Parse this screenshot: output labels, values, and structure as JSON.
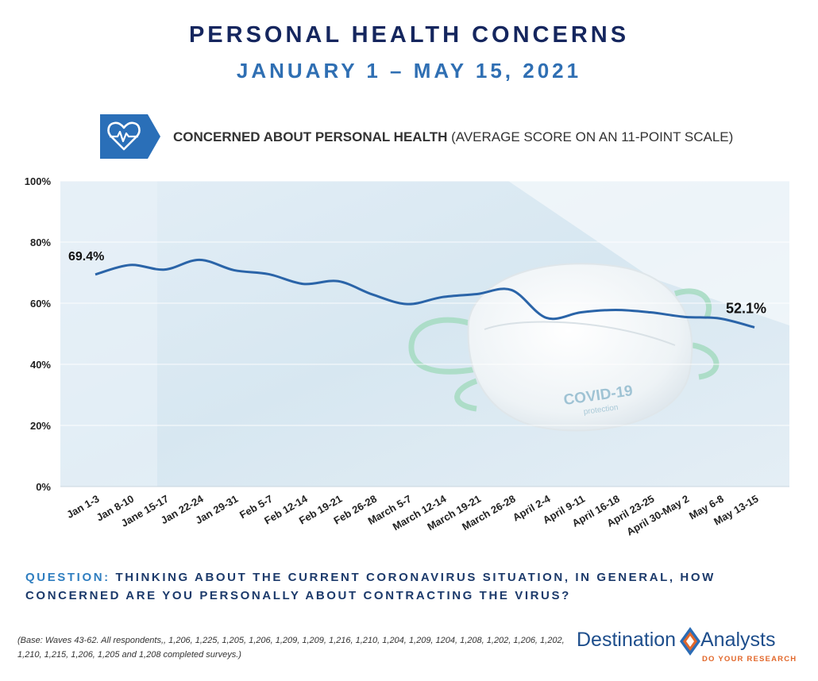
{
  "header": {
    "title": "PERSONAL HEALTH CONCERNS",
    "subtitle": "JANUARY 1 – MAY 15, 2021"
  },
  "metric": {
    "icon": "heart-pulse-icon",
    "label_bold": "CONCERNED ABOUT PERSONAL HEALTH",
    "label_rest": " (AVERAGE SCORE ON AN 11-POINT SCALE)"
  },
  "chart_data": {
    "type": "line",
    "categories": [
      "Jan 1-3",
      "Jan 8-10",
      "Jane 15-17",
      "Jan 22-24",
      "Jan 29-31",
      "Feb 5-7",
      "Feb 12-14",
      "Feb 19-21",
      "Feb 26-28",
      "March 5-7",
      "March 12-14",
      "March 19-21",
      "March 26-28",
      "April 2-4",
      "April 9-11",
      "April 16-18",
      "April 23-25",
      "April 30-May 2",
      "May 6-8",
      "May 13-15"
    ],
    "series": [
      {
        "values": [
          69.4,
          72.5,
          71.0,
          74.2,
          70.8,
          69.5,
          66.3,
          67.2,
          62.8,
          59.7,
          62.0,
          63.0,
          64.3,
          55.2,
          57.0,
          57.8,
          57.0,
          55.5,
          55.0,
          52.1
        ],
        "color": "#2a64a8"
      }
    ],
    "ylim": [
      0,
      100
    ],
    "yticks": [
      "0%",
      "20%",
      "40%",
      "60%",
      "80%",
      "100%"
    ],
    "ytick_values": [
      0,
      20,
      40,
      60,
      80,
      100
    ],
    "annotations": [
      {
        "index": 0,
        "text": "69.4%"
      },
      {
        "index": 19,
        "text": "52.1%"
      }
    ],
    "background_image": "covid-19-mask-photo",
    "mask_text": "COVID-19",
    "mask_subtext": "protection",
    "grid": true
  },
  "question": {
    "label": "QUESTION:",
    "text": " THINKING ABOUT THE CURRENT CORONAVIRUS SITUATION, IN GENERAL, HOW CONCERNED ARE YOU PERSONALLY ABOUT CONTRACTING THE VIRUS?"
  },
  "base_note": "(Base: Waves 43-62.  All respondents,, 1,206, 1,225, 1,205, 1,206, 1,209, 1,209, 1,216, 1,210, 1,204, 1,209, 1204, 1,208, 1,202, 1,206, 1,202, 1,210, 1,215, 1,206, 1,205 and 1,208 completed surveys.)",
  "logo": {
    "left": "Destination",
    "right": "Analysts",
    "tagline": "DO YOUR RESEARCH",
    "colors": {
      "blue": "#1e4e8c",
      "orange": "#e2672a"
    }
  }
}
